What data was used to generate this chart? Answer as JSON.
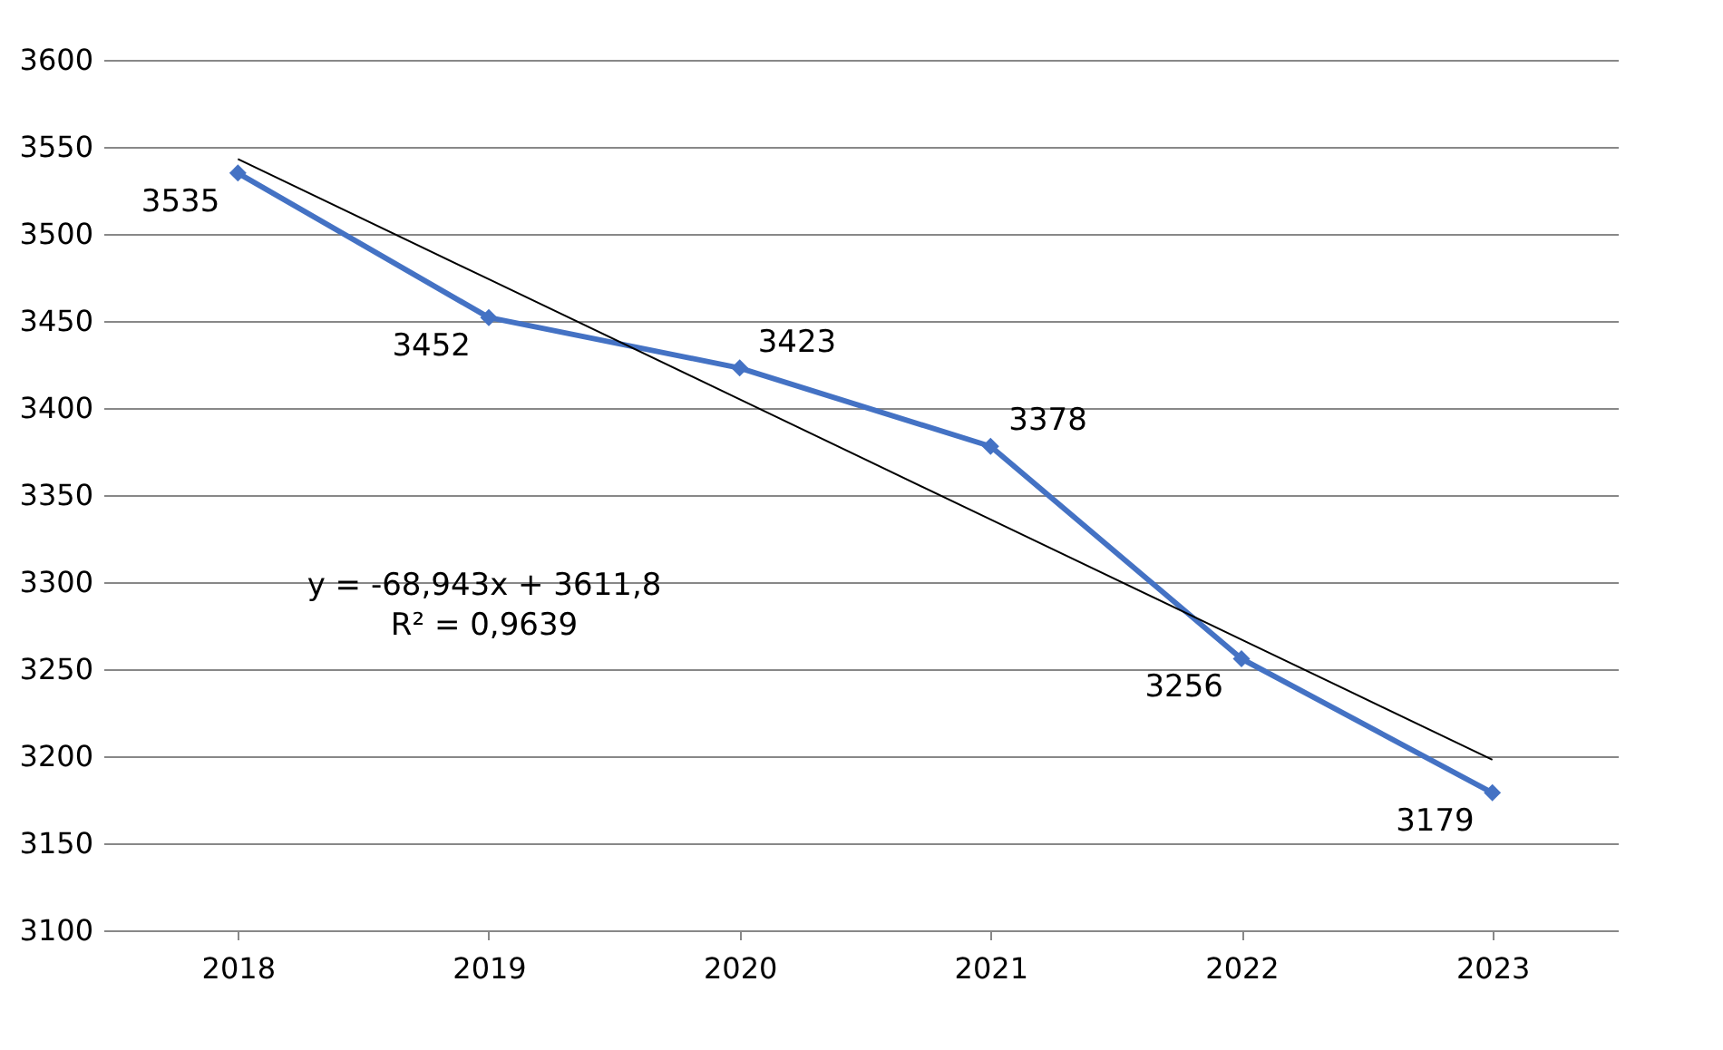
{
  "chart_data": {
    "type": "line",
    "categories": [
      "2018",
      "2019",
      "2020",
      "2021",
      "2022",
      "2023"
    ],
    "series": [
      {
        "color": "#4472c4",
        "values": [
          3535,
          3452,
          3423,
          3378,
          3256,
          3179
        ],
        "value_labels": [
          "3535",
          "3452",
          "3423",
          "3378",
          "3256",
          "3179"
        ],
        "marker": "diamond"
      },
      {
        "type": "line",
        "color": "#000000",
        "values": [
          3543,
          3474,
          3405,
          3336,
          3267,
          3198
        ],
        "marker": "none"
      }
    ],
    "ylim": [
      3100,
      3600
    ],
    "yticks": [
      3100,
      3150,
      3200,
      3250,
      3300,
      3350,
      3400,
      3450,
      3500,
      3550,
      3600
    ],
    "grid": "y",
    "annotations": [
      "y = -68,943x + 3611,8\nR² = 0,9639"
    ]
  }
}
